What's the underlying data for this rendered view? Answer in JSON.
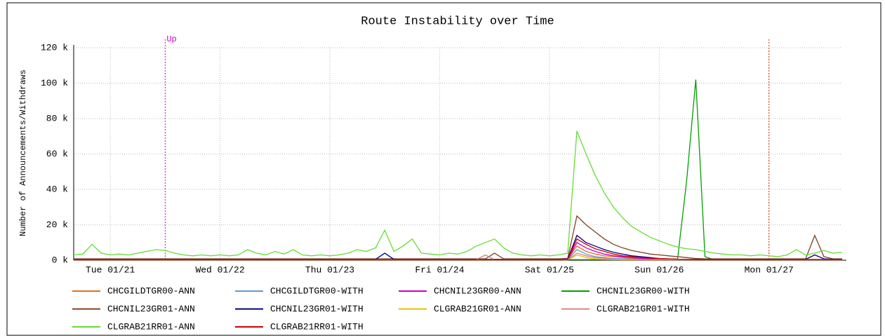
{
  "chart_data": {
    "type": "line",
    "title": "Route Instability over Time",
    "y_label": "Number of Announcements/Withdraws",
    "categories": [
      null,
      null,
      null,
      null,
      "Tue 01/21",
      null,
      null,
      null,
      null,
      null,
      null,
      null,
      null,
      null,
      null,
      null,
      "Wed 01/22",
      null,
      null,
      null,
      null,
      null,
      null,
      null,
      null,
      null,
      null,
      null,
      "Thu 01/23",
      null,
      null,
      null,
      null,
      null,
      null,
      null,
      null,
      null,
      null,
      null,
      "Fri 01/24",
      null,
      null,
      null,
      null,
      null,
      null,
      null,
      null,
      null,
      null,
      null,
      "Sat 01/25",
      null,
      null,
      null,
      null,
      null,
      null,
      null,
      null,
      null,
      null,
      null,
      "Sun 01/26",
      null,
      null,
      null,
      null,
      null,
      null,
      null,
      null,
      null,
      null,
      null,
      "Mon 01/27",
      null,
      null,
      null,
      null,
      null,
      null,
      null,
      null
    ],
    "ylim": [
      0,
      120000
    ],
    "yticks": [
      {
        "value": 0,
        "label": "0 k"
      },
      {
        "value": 20000,
        "label": "20 k"
      },
      {
        "value": 40000,
        "label": "40 k"
      },
      {
        "value": 60000,
        "label": "60 k"
      },
      {
        "value": 80000,
        "label": "80 k"
      },
      {
        "value": 100000,
        "label": "100 k"
      },
      {
        "value": 120000,
        "label": "120 k"
      }
    ],
    "grid": true,
    "markers": [
      {
        "label": "Up",
        "index": 10,
        "color": "#cc00cc"
      },
      {
        "index": 76,
        "color": "#cc3300"
      }
    ],
    "series": [
      {
        "name": "CHCGILDTGR00-ANN",
        "color": "#e07020",
        "values": [
          500,
          500,
          500,
          500,
          500,
          500,
          500,
          500,
          500,
          500,
          500,
          500,
          500,
          500,
          500,
          500,
          500,
          500,
          500,
          500,
          500,
          500,
          500,
          500,
          500,
          500,
          500,
          500,
          500,
          500,
          500,
          500,
          500,
          500,
          500,
          500,
          500,
          500,
          500,
          500,
          500,
          500,
          500,
          500,
          500,
          500,
          500,
          500,
          500,
          500,
          500,
          500,
          500,
          500,
          600,
          8000,
          5000,
          3500,
          2500,
          2000,
          1500,
          1000,
          800,
          600,
          500,
          500,
          500,
          500,
          500,
          500,
          500,
          500,
          500,
          500,
          500,
          500,
          500,
          500,
          500,
          500,
          500,
          500,
          500,
          500,
          500
        ]
      },
      {
        "name": "CHCGILDTGR00-WITH",
        "color": "#6699cc",
        "values": [
          300,
          300,
          300,
          300,
          300,
          300,
          300,
          300,
          300,
          300,
          300,
          300,
          300,
          300,
          300,
          300,
          300,
          300,
          300,
          300,
          300,
          300,
          300,
          300,
          300,
          300,
          300,
          300,
          300,
          300,
          300,
          300,
          300,
          300,
          300,
          300,
          300,
          300,
          300,
          300,
          300,
          300,
          300,
          300,
          300,
          300,
          300,
          300,
          300,
          300,
          300,
          300,
          300,
          300,
          400,
          6000,
          3500,
          2000,
          1500,
          1000,
          800,
          600,
          500,
          400,
          300,
          300,
          300,
          300,
          300,
          300,
          300,
          300,
          300,
          300,
          300,
          300,
          300,
          300,
          300,
          300,
          300,
          300,
          300,
          300,
          300
        ]
      },
      {
        "name": "CHCNIL23GR00-ANN",
        "color": "#cc00cc",
        "values": [
          300,
          300,
          300,
          300,
          300,
          300,
          300,
          300,
          300,
          300,
          300,
          300,
          300,
          300,
          300,
          300,
          300,
          300,
          300,
          300,
          300,
          300,
          300,
          300,
          300,
          300,
          300,
          300,
          300,
          300,
          300,
          300,
          300,
          300,
          300,
          300,
          300,
          300,
          300,
          300,
          300,
          300,
          300,
          300,
          300,
          300,
          300,
          300,
          300,
          300,
          300,
          300,
          300,
          300,
          400,
          10000,
          7000,
          5000,
          3500,
          2500,
          2000,
          1500,
          1000,
          800,
          600,
          500,
          400,
          300,
          300,
          300,
          300,
          300,
          300,
          300,
          300,
          300,
          300,
          300,
          300,
          300,
          300,
          300,
          300,
          300,
          300
        ]
      },
      {
        "name": "CHCNIL23GR00-WITH",
        "color": "#00a000",
        "values": [
          300,
          300,
          300,
          300,
          300,
          300,
          300,
          300,
          300,
          300,
          300,
          300,
          300,
          300,
          300,
          300,
          300,
          300,
          300,
          300,
          300,
          300,
          300,
          300,
          300,
          300,
          300,
          300,
          300,
          300,
          300,
          300,
          300,
          300,
          300,
          300,
          300,
          300,
          300,
          300,
          300,
          300,
          300,
          300,
          300,
          300,
          300,
          300,
          300,
          300,
          300,
          300,
          300,
          300,
          300,
          300,
          300,
          300,
          300,
          300,
          300,
          300,
          300,
          300,
          300,
          300,
          500,
          45000,
          102000,
          2000,
          300,
          300,
          300,
          300,
          300,
          300,
          300,
          300,
          300,
          300,
          300,
          300,
          300,
          300,
          300
        ]
      },
      {
        "name": "CHCNIL23GR01-ANN",
        "color": "#804020",
        "values": [
          800,
          800,
          800,
          800,
          800,
          800,
          800,
          800,
          800,
          800,
          800,
          800,
          800,
          800,
          800,
          800,
          800,
          800,
          800,
          800,
          800,
          800,
          800,
          800,
          800,
          800,
          800,
          800,
          800,
          800,
          800,
          800,
          800,
          800,
          800,
          800,
          800,
          800,
          800,
          800,
          800,
          800,
          800,
          800,
          800,
          800,
          4000,
          800,
          800,
          800,
          800,
          800,
          800,
          800,
          1000,
          25000,
          20000,
          16000,
          12000,
          9000,
          7000,
          5500,
          4500,
          3500,
          3000,
          2500,
          2000,
          1500,
          1000,
          800,
          800,
          800,
          800,
          800,
          800,
          800,
          800,
          800,
          800,
          800,
          800,
          14000,
          2000,
          800,
          800
        ]
      },
      {
        "name": "CHCNIL23GR01-WITH",
        "color": "#000080",
        "values": [
          500,
          500,
          500,
          500,
          500,
          500,
          500,
          500,
          500,
          500,
          500,
          500,
          500,
          500,
          500,
          500,
          500,
          500,
          500,
          500,
          500,
          500,
          500,
          500,
          500,
          500,
          500,
          500,
          500,
          500,
          500,
          500,
          500,
          500,
          4000,
          500,
          500,
          500,
          500,
          500,
          500,
          500,
          500,
          500,
          500,
          500,
          500,
          500,
          500,
          500,
          500,
          500,
          500,
          500,
          700,
          14000,
          10000,
          8000,
          6000,
          4500,
          3500,
          2500,
          2000,
          1500,
          1000,
          800,
          600,
          500,
          500,
          500,
          500,
          500,
          500,
          500,
          500,
          500,
          500,
          500,
          500,
          500,
          500,
          3000,
          800,
          500,
          500
        ]
      },
      {
        "name": "CLGRAB21GR01-ANN",
        "color": "#e0c000",
        "values": [
          200,
          200,
          200,
          200,
          200,
          200,
          200,
          200,
          200,
          200,
          200,
          200,
          200,
          200,
          200,
          200,
          200,
          200,
          200,
          200,
          200,
          200,
          200,
          200,
          200,
          200,
          200,
          200,
          200,
          200,
          200,
          200,
          200,
          200,
          200,
          200,
          200,
          200,
          200,
          200,
          200,
          200,
          200,
          200,
          200,
          200,
          200,
          200,
          200,
          200,
          200,
          200,
          200,
          200,
          200,
          3000,
          1500,
          800,
          500,
          300,
          200,
          200,
          200,
          200,
          200,
          200,
          200,
          200,
          200,
          200,
          200,
          200,
          200,
          200,
          200,
          200,
          200,
          200,
          200,
          200,
          200,
          200,
          200,
          200,
          200
        ]
      },
      {
        "name": "CLGRAB21GR01-WITH",
        "color": "#e08080",
        "values": [
          300,
          300,
          300,
          300,
          300,
          300,
          300,
          300,
          300,
          300,
          300,
          300,
          300,
          300,
          300,
          300,
          300,
          300,
          300,
          300,
          300,
          300,
          300,
          300,
          300,
          300,
          300,
          300,
          300,
          300,
          300,
          300,
          300,
          300,
          300,
          300,
          300,
          300,
          300,
          300,
          300,
          300,
          300,
          300,
          300,
          3000,
          300,
          300,
          300,
          300,
          300,
          300,
          300,
          300,
          300,
          4000,
          2500,
          1500,
          1000,
          600,
          500,
          400,
          300,
          300,
          300,
          300,
          300,
          300,
          300,
          300,
          300,
          300,
          300,
          300,
          300,
          300,
          300,
          300,
          300,
          300,
          300,
          300,
          300,
          300,
          300
        ]
      },
      {
        "name": "CLGRAB21RR01-ANN",
        "color": "#66dd33",
        "values": [
          3000,
          3500,
          9000,
          4000,
          3000,
          3500,
          3000,
          4000,
          5000,
          6000,
          5500,
          4000,
          3000,
          2500,
          3000,
          2500,
          3000,
          2500,
          3000,
          6000,
          4000,
          3000,
          5000,
          3500,
          6000,
          3000,
          2500,
          3000,
          2500,
          3000,
          4000,
          6000,
          5000,
          7000,
          17000,
          5000,
          8000,
          12000,
          4000,
          3500,
          3000,
          4000,
          3500,
          5000,
          8000,
          10000,
          12000,
          7000,
          4000,
          3000,
          2500,
          3000,
          2500,
          3000,
          4000,
          73000,
          60000,
          48000,
          38000,
          30000,
          24000,
          19000,
          16000,
          13000,
          11000,
          9000,
          7500,
          6500,
          6000,
          5000,
          4000,
          3500,
          3000,
          3000,
          2500,
          3000,
          2500,
          2000,
          3000,
          6000,
          3000,
          4000,
          5500,
          4000,
          4500
        ]
      },
      {
        "name": "CLGRAB21RR01-WITH",
        "color": "#cc0000",
        "values": [
          400,
          400,
          400,
          400,
          400,
          400,
          400,
          400,
          400,
          400,
          400,
          400,
          400,
          400,
          400,
          400,
          400,
          400,
          400,
          400,
          400,
          400,
          400,
          400,
          400,
          400,
          400,
          400,
          400,
          400,
          400,
          400,
          400,
          400,
          400,
          400,
          400,
          400,
          400,
          400,
          400,
          400,
          400,
          400,
          400,
          400,
          400,
          400,
          400,
          400,
          400,
          400,
          400,
          400,
          500,
          12000,
          9000,
          6500,
          5000,
          3500,
          2500,
          2000,
          1500,
          1200,
          1000,
          800,
          600,
          500,
          400,
          400,
          400,
          400,
          400,
          400,
          400,
          400,
          400,
          400,
          400,
          400,
          400,
          400,
          400,
          400,
          400
        ]
      }
    ]
  }
}
